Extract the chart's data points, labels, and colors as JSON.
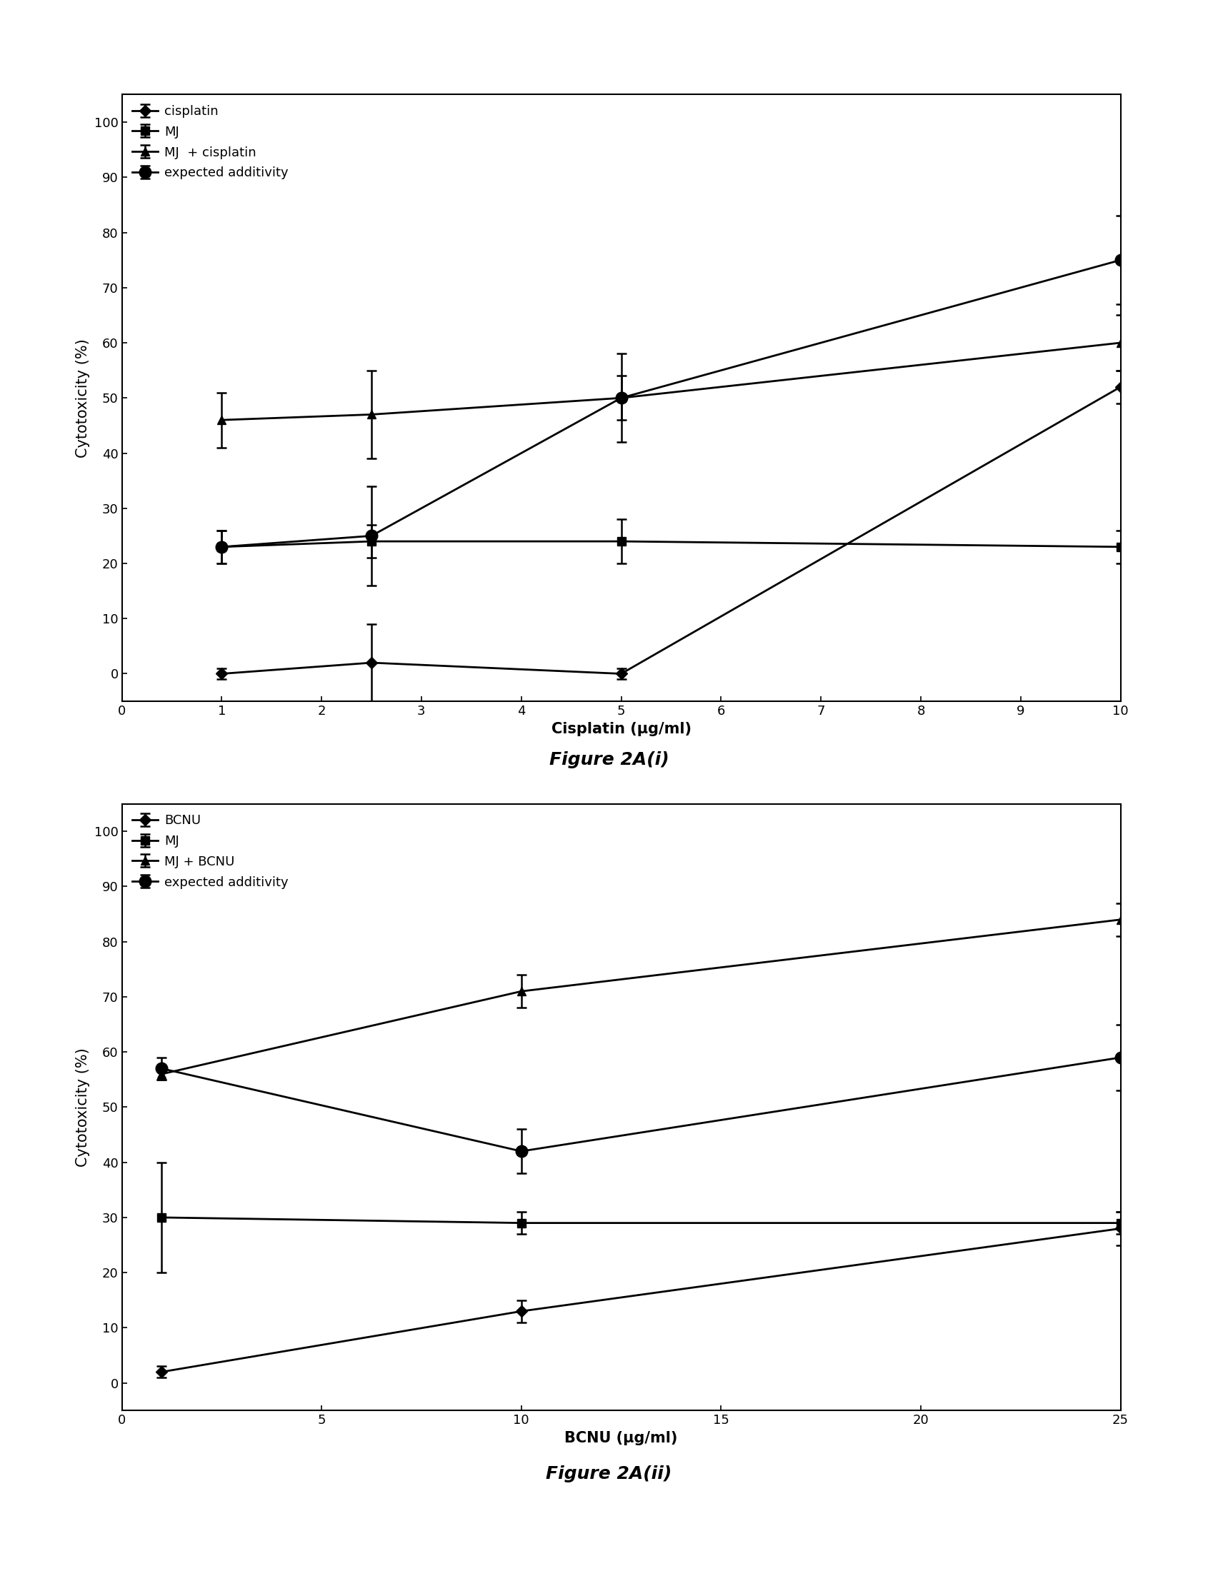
{
  "fig1": {
    "title": "Figure 2A(i)",
    "xlabel": "Cisplatin (μg/ml)",
    "ylabel": "Cytotoxicity (%)",
    "xlim": [
      0,
      10
    ],
    "ylim": [
      -5,
      105
    ],
    "xticks": [
      0,
      1,
      2,
      3,
      4,
      5,
      6,
      7,
      8,
      9,
      10
    ],
    "yticks": [
      0,
      10,
      20,
      30,
      40,
      50,
      60,
      70,
      80,
      90,
      100
    ],
    "cisplatin": {
      "x": [
        1,
        2.5,
        5,
        10
      ],
      "y": [
        0,
        2,
        0,
        52
      ],
      "yerr": [
        1,
        7,
        1,
        3
      ],
      "label": "cisplatin",
      "marker": "D",
      "markersize": 8
    },
    "MJ": {
      "x": [
        1,
        2.5,
        5,
        10
      ],
      "y": [
        23,
        24,
        24,
        23
      ],
      "yerr": [
        3,
        3,
        4,
        3
      ],
      "label": "MJ",
      "marker": "s",
      "markersize": 8
    },
    "MJ_cisplatin": {
      "x": [
        1,
        2.5,
        5,
        10
      ],
      "y": [
        46,
        47,
        50,
        60
      ],
      "yerr": [
        5,
        8,
        8,
        5
      ],
      "label": "MJ  + cisplatin",
      "marker": "^",
      "markersize": 9
    },
    "expected": {
      "x": [
        1,
        2.5,
        5,
        10
      ],
      "y": [
        23,
        25,
        50,
        75
      ],
      "yerr": [
        3,
        9,
        4,
        8
      ],
      "label": "expected additivity",
      "marker": "o",
      "markersize": 12
    }
  },
  "fig2": {
    "title": "Figure 2A(ii)",
    "xlabel": "BCNU (μg/ml)",
    "ylabel": "Cytotoxicity (%)",
    "xlim": [
      0,
      25
    ],
    "ylim": [
      -5,
      105
    ],
    "xticks": [
      0,
      5,
      10,
      15,
      20,
      25
    ],
    "yticks": [
      0,
      10,
      20,
      30,
      40,
      50,
      60,
      70,
      80,
      90,
      100
    ],
    "BCNU": {
      "x": [
        1,
        10,
        25
      ],
      "y": [
        2,
        13,
        28
      ],
      "yerr": [
        1,
        2,
        3
      ],
      "label": "BCNU",
      "marker": "D",
      "markersize": 8
    },
    "MJ": {
      "x": [
        1,
        10,
        25
      ],
      "y": [
        30,
        29,
        29
      ],
      "yerr": [
        10,
        2,
        2
      ],
      "label": "MJ",
      "marker": "s",
      "markersize": 8
    },
    "MJ_BCNU": {
      "x": [
        1,
        10,
        25
      ],
      "y": [
        56,
        71,
        84
      ],
      "yerr": [
        1,
        3,
        3
      ],
      "label": "MJ + BCNU",
      "marker": "^",
      "markersize": 9
    },
    "expected": {
      "x": [
        1,
        10,
        25
      ],
      "y": [
        57,
        42,
        59
      ],
      "yerr": [
        2,
        4,
        6
      ],
      "label": "expected additivity",
      "marker": "o",
      "markersize": 12
    }
  },
  "line_color": "#000000",
  "background_color": "#ffffff",
  "caption_fontsize": 18,
  "label_fontsize": 15,
  "tick_fontsize": 13,
  "legend_fontsize": 13
}
